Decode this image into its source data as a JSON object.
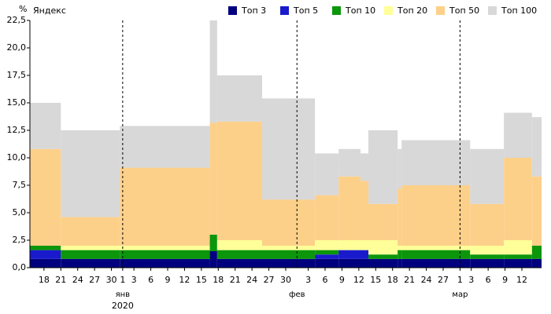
{
  "chart_data": {
    "type": "step-area",
    "y_unit": "%",
    "source": "Яндекс",
    "x": [
      -0.5,
      5,
      15.5,
      31.5,
      32.8,
      40.8,
      50.2,
      54.4,
      58.3,
      59.7,
      64.9,
      65.6,
      77.8,
      83.8,
      88.8
    ],
    "xlim": [
      -0.5,
      90.5
    ],
    "xticks": [
      {
        "value": 2,
        "label": "18"
      },
      {
        "value": 5,
        "label": "21"
      },
      {
        "value": 8,
        "label": "24"
      },
      {
        "value": 11,
        "label": "27"
      },
      {
        "value": 14,
        "label": "30"
      },
      {
        "value": 16,
        "label": "1"
      },
      {
        "value": 18,
        "label": "3"
      },
      {
        "value": 21,
        "label": "6"
      },
      {
        "value": 24,
        "label": "9"
      },
      {
        "value": 27,
        "label": "12"
      },
      {
        "value": 30,
        "label": "15"
      },
      {
        "value": 33,
        "label": "18"
      },
      {
        "value": 36,
        "label": "21"
      },
      {
        "value": 39,
        "label": "24"
      },
      {
        "value": 42,
        "label": "27"
      },
      {
        "value": 45,
        "label": "30"
      },
      {
        "value": 49,
        "label": "3"
      },
      {
        "value": 52,
        "label": "6"
      },
      {
        "value": 55,
        "label": "9"
      },
      {
        "value": 58,
        "label": "12"
      },
      {
        "value": 61,
        "label": "15"
      },
      {
        "value": 64,
        "label": "18"
      },
      {
        "value": 67,
        "label": "21"
      },
      {
        "value": 70,
        "label": "24"
      },
      {
        "value": 73,
        "label": "27"
      },
      {
        "value": 76,
        "label": "1"
      },
      {
        "value": 78,
        "label": "3"
      },
      {
        "value": 81,
        "label": "6"
      },
      {
        "value": 84,
        "label": "9"
      },
      {
        "value": 87,
        "label": "12"
      }
    ],
    "months": [
      {
        "value": 16,
        "label": "янв"
      },
      {
        "value": 47,
        "label": "фев"
      },
      {
        "value": 76,
        "label": "мар"
      }
    ],
    "year": "2020",
    "ylim": [
      0,
      22.5
    ],
    "yticks": [
      {
        "value": 0,
        "label": "0,0"
      },
      {
        "value": 2.5,
        "label": "2,5"
      },
      {
        "value": 5,
        "label": "5,0"
      },
      {
        "value": 7.5,
        "label": "7,5"
      },
      {
        "value": 10,
        "label": "10,0"
      },
      {
        "value": 12.5,
        "label": "12,5"
      },
      {
        "value": 15,
        "label": "15,0"
      },
      {
        "value": 17.5,
        "label": "17,5"
      },
      {
        "value": 20,
        "label": "20,0"
      },
      {
        "value": 22.5,
        "label": "22,5"
      }
    ],
    "series": [
      {
        "name": "Топ 3",
        "color": "#00007f",
        "values": [
          0.8,
          0.8,
          0.8,
          1.5,
          0.8,
          0.8,
          0.8,
          0.8,
          0.8,
          0.8,
          0.8,
          0.8,
          0.8,
          0.8,
          0.8
        ]
      },
      {
        "name": "Топ 5",
        "color": "#1a1acd",
        "values": [
          0.8,
          0,
          0,
          0,
          0,
          0,
          0.4,
          0.8,
          0.8,
          0,
          0,
          0,
          0,
          0,
          0
        ]
      },
      {
        "name": "Топ 10",
        "color": "#0b960b",
        "values": [
          0.4,
          0.8,
          0.8,
          1.5,
          0.8,
          0.8,
          0.4,
          0,
          0,
          0.4,
          0.8,
          0.8,
          0.4,
          0.4,
          1.2
        ]
      },
      {
        "name": "Топ 20",
        "color": "#ffff99",
        "values": [
          0,
          0.4,
          0.4,
          0,
          0.9,
          0.4,
          0.9,
          0.9,
          0.9,
          1.3,
          0.4,
          0.4,
          0.8,
          1.3,
          0
        ]
      },
      {
        "name": "Топ 50",
        "color": "#fdd08a",
        "values": [
          8.8,
          2.6,
          7.1,
          10.2,
          10.8,
          4.2,
          4.1,
          5.8,
          5.4,
          3.3,
          5.2,
          5.5,
          3.8,
          7.5,
          6.3
        ]
      },
      {
        "name": "Топ 100",
        "color": "#d8d8d8",
        "values": [
          4.2,
          7.9,
          3.8,
          9.3,
          4.2,
          9.2,
          3.8,
          2.5,
          2.5,
          6.7,
          3.6,
          4.1,
          5.0,
          4.1,
          5.4
        ]
      }
    ]
  }
}
